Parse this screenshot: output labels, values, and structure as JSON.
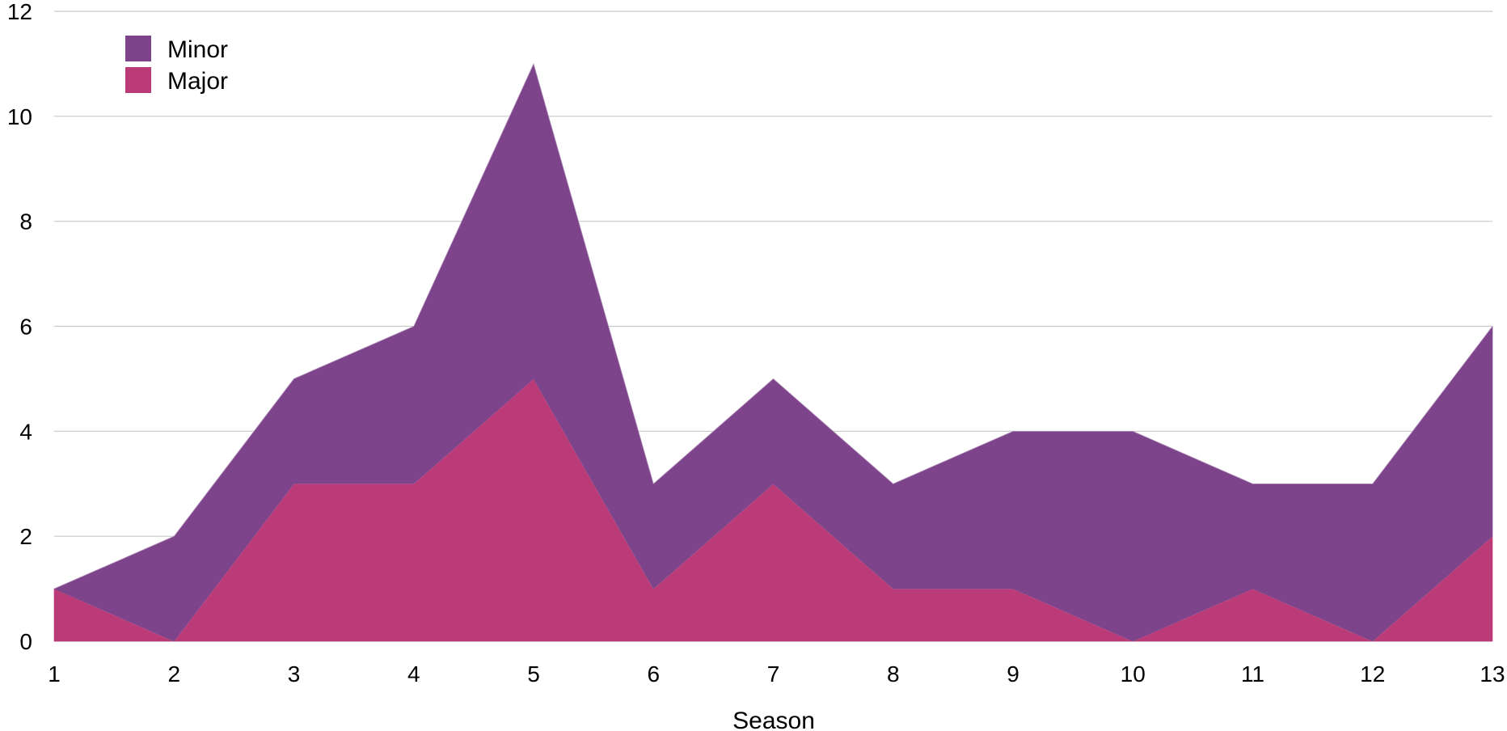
{
  "chart_data": {
    "type": "area",
    "stacked": true,
    "title": "",
    "xlabel": "Season",
    "ylabel": "",
    "x": [
      1,
      2,
      3,
      4,
      5,
      6,
      7,
      8,
      9,
      10,
      11,
      12,
      13
    ],
    "xlim": [
      1,
      13
    ],
    "ylim": [
      0,
      12
    ],
    "yticks": [
      0,
      2,
      4,
      6,
      8,
      10,
      12
    ],
    "grid": true,
    "legend_position": "top-left",
    "series": [
      {
        "name": "Major",
        "color": "#ba3b78",
        "values": [
          1,
          0,
          3,
          3,
          5,
          1,
          3,
          1,
          1,
          0,
          1,
          0,
          2
        ]
      },
      {
        "name": "Minor",
        "color": "#7e448b",
        "values": [
          0,
          2,
          2,
          3,
          6,
          2,
          2,
          2,
          3,
          4,
          2,
          3,
          4
        ]
      }
    ],
    "legend": [
      "Minor",
      "Major"
    ]
  }
}
